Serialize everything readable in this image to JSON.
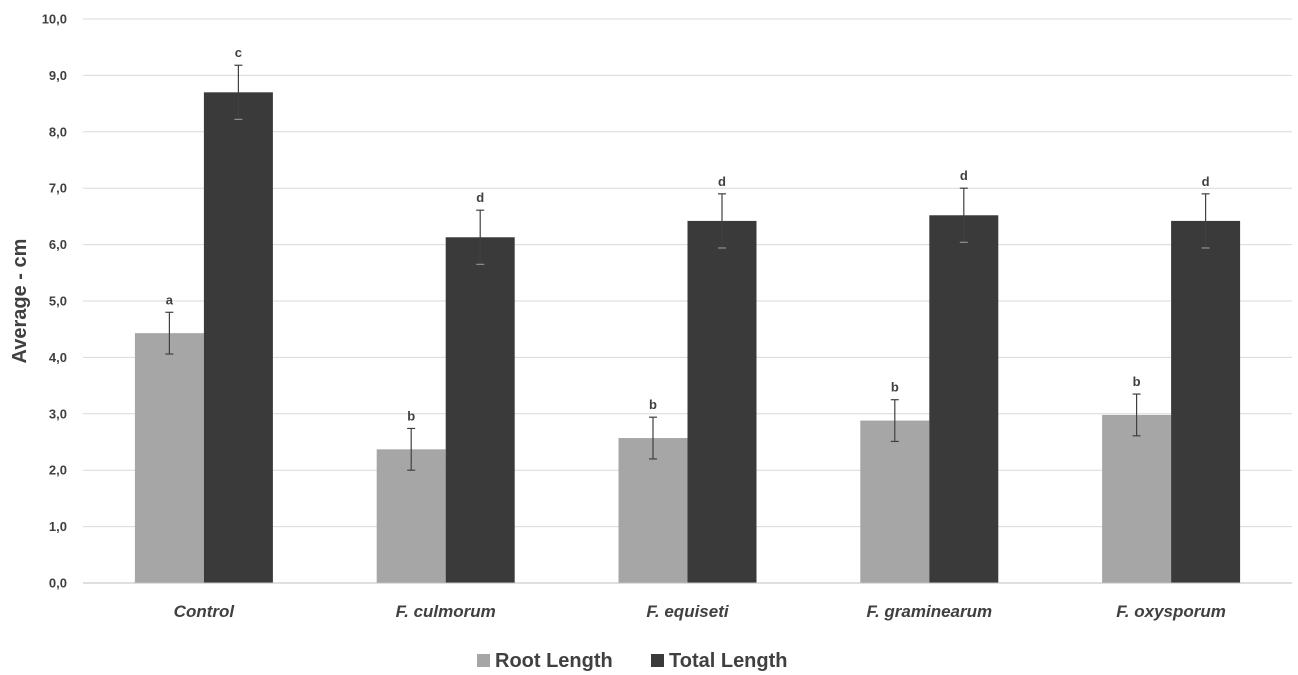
{
  "chart_data": {
    "type": "bar",
    "title": "",
    "xlabel": "",
    "ylabel": "Average - cm",
    "ylim": [
      0,
      10
    ],
    "ytick_step": 1,
    "ytick_labels": [
      "0,0",
      "1,0",
      "2,0",
      "3,0",
      "4,0",
      "5,0",
      "6,0",
      "7,0",
      "8,0",
      "9,0",
      "10,0"
    ],
    "grid": true,
    "legend_position": "bottom",
    "categories": [
      "Control",
      "F. culmorum",
      "F. equiseti",
      "F. graminearum",
      "F. oxysporum"
    ],
    "series": [
      {
        "name": "Root Length",
        "color": "#a6a6a6",
        "values": [
          4.43,
          2.37,
          2.57,
          2.88,
          2.98
        ],
        "errors": [
          0.37,
          0.37,
          0.37,
          0.37,
          0.37
        ],
        "labels": [
          "a",
          "b",
          "b",
          "b",
          "b"
        ]
      },
      {
        "name": "Total Length",
        "color": "#3a3a3a",
        "values": [
          8.7,
          6.13,
          6.42,
          6.52,
          6.42
        ],
        "errors": [
          0.48,
          0.48,
          0.48,
          0.48,
          0.48
        ],
        "labels": [
          "c",
          "d",
          "d",
          "d",
          "d"
        ]
      }
    ]
  }
}
